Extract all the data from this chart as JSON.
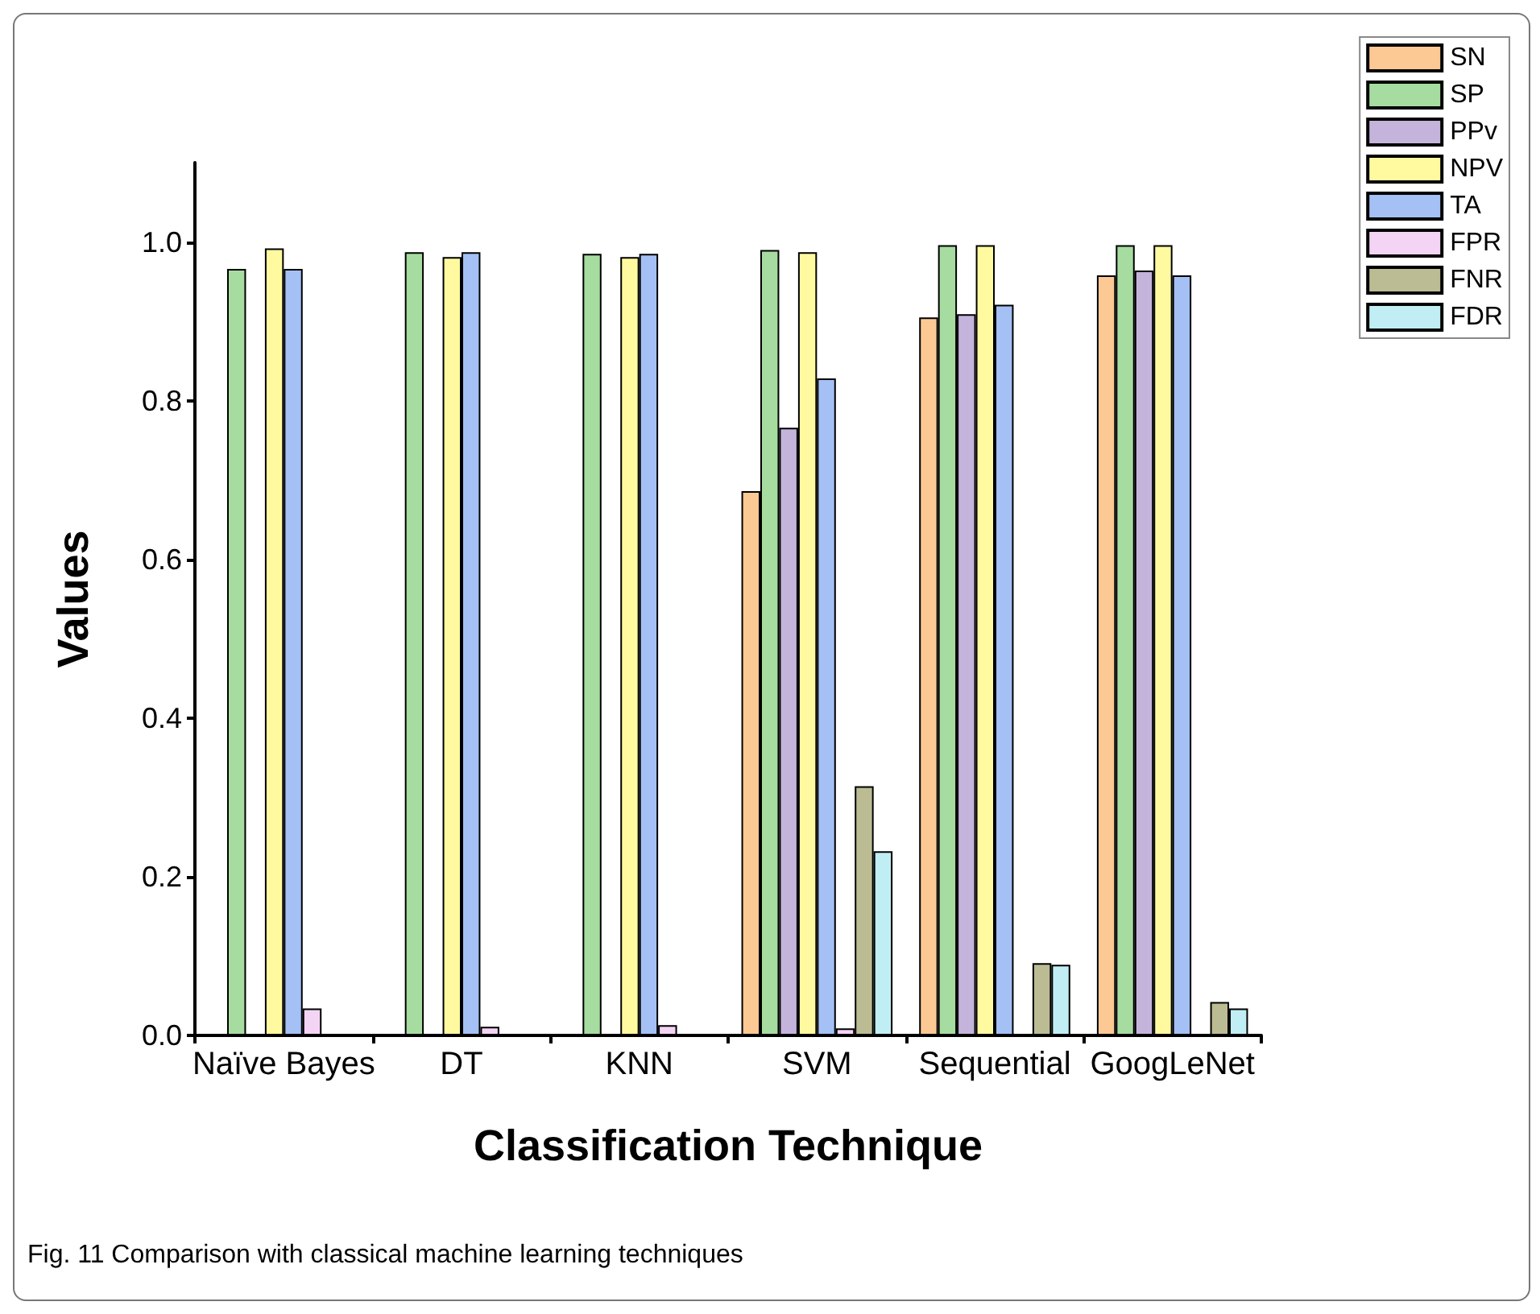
{
  "chart_data": {
    "type": "bar",
    "xlabel": "Classification Technique",
    "ylabel": "Values",
    "categories": [
      "Naïve Bayes",
      "DT",
      "KNN",
      "SVM",
      "Sequential",
      "GoogLeNet"
    ],
    "series": [
      {
        "name": "SN",
        "color": "#fcc894",
        "values": [
          null,
          null,
          null,
          0.686,
          0.905,
          0.958
        ]
      },
      {
        "name": "SP",
        "color": "#a6dca0",
        "values": [
          0.966,
          0.987,
          0.985,
          0.99,
          0.996,
          0.996
        ]
      },
      {
        "name": "PPv",
        "color": "#c4b4dc",
        "values": [
          null,
          null,
          null,
          0.766,
          0.909,
          0.964
        ]
      },
      {
        "name": "NPV",
        "color": "#fffaa0",
        "values": [
          0.992,
          0.981,
          0.981,
          0.987,
          0.996,
          0.996
        ]
      },
      {
        "name": "TA",
        "color": "#a4c0f4",
        "values": [
          0.966,
          0.987,
          0.985,
          0.828,
          0.921,
          0.958
        ]
      },
      {
        "name": "FPR",
        "color": "#f4d4f4",
        "values": [
          0.034,
          0.011,
          0.013,
          0.009,
          null,
          null
        ]
      },
      {
        "name": "FNR",
        "color": "#bcbc94",
        "values": [
          null,
          null,
          null,
          0.314,
          0.091,
          0.042
        ]
      },
      {
        "name": "FDR",
        "color": "#c0eef4",
        "values": [
          null,
          null,
          null,
          0.232,
          0.089,
          0.034
        ]
      }
    ],
    "ylim": [
      0,
      1.1
    ],
    "yticks": [
      {
        "value": 0,
        "label": "0.0"
      },
      0.2,
      0.4,
      0.6,
      0.8,
      {
        "value": 1,
        "label": "1.0"
      }
    ],
    "grid": false,
    "legend": "top right",
    "annotations": [
      "Fig. 11  Comparison with classical machine learning techniques"
    ]
  }
}
